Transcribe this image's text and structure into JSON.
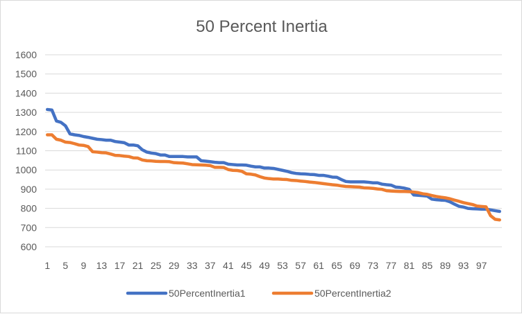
{
  "chart_data": {
    "type": "line",
    "title": "50 Percent Inertia",
    "xlabel": "",
    "ylabel": "",
    "ylim": [
      600,
      1600
    ],
    "y_ticks": [
      600,
      700,
      800,
      900,
      1000,
      1100,
      1200,
      1300,
      1400,
      1500,
      1600
    ],
    "x_ticks": [
      1,
      5,
      9,
      13,
      17,
      21,
      25,
      29,
      33,
      37,
      41,
      45,
      49,
      53,
      57,
      61,
      65,
      69,
      73,
      77,
      81,
      85,
      89,
      93,
      97
    ],
    "grid": true,
    "legend_position": "bottom",
    "series": [
      {
        "name": "50PercentInertia1",
        "color": "#4472c4",
        "values": [
          1315,
          1312,
          1255,
          1248,
          1230,
          1188,
          1183,
          1180,
          1174,
          1170,
          1165,
          1160,
          1158,
          1155,
          1155,
          1148,
          1145,
          1142,
          1130,
          1130,
          1126,
          1105,
          1093,
          1088,
          1085,
          1078,
          1078,
          1070,
          1070,
          1070,
          1070,
          1068,
          1068,
          1068,
          1048,
          1046,
          1043,
          1040,
          1038,
          1038,
          1030,
          1028,
          1026,
          1026,
          1025,
          1020,
          1016,
          1016,
          1010,
          1010,
          1008,
          1003,
          998,
          993,
          986,
          982,
          980,
          979,
          977,
          976,
          972,
          972,
          968,
          963,
          962,
          950,
          940,
          938,
          938,
          938,
          938,
          936,
          933,
          933,
          926,
          923,
          921,
          911,
          909,
          905,
          899,
          870,
          868,
          866,
          864,
          848,
          845,
          843,
          842,
          834,
          822,
          811,
          807,
          800,
          798,
          797,
          796,
          796,
          792,
          788,
          784
        ]
      },
      {
        "name": "50PercentInertia2",
        "color": "#ed7d31",
        "values": [
          1183,
          1183,
          1160,
          1155,
          1145,
          1143,
          1137,
          1130,
          1128,
          1122,
          1095,
          1093,
          1090,
          1089,
          1083,
          1076,
          1075,
          1072,
          1070,
          1063,
          1062,
          1052,
          1048,
          1047,
          1045,
          1044,
          1044,
          1043,
          1038,
          1037,
          1036,
          1032,
          1028,
          1027,
          1026,
          1025,
          1023,
          1014,
          1014,
          1013,
          1002,
          998,
          997,
          993,
          980,
          978,
          974,
          965,
          958,
          955,
          953,
          953,
          951,
          950,
          946,
          945,
          942,
          940,
          937,
          935,
          932,
          929,
          926,
          923,
          921,
          917,
          914,
          913,
          912,
          911,
          907,
          906,
          904,
          901,
          899,
          892,
          890,
          889,
          888,
          888,
          887,
          885,
          882,
          876,
          873,
          867,
          862,
          858,
          855,
          850,
          843,
          837,
          830,
          825,
          820,
          812,
          810,
          808,
          762,
          743,
          740
        ]
      }
    ]
  }
}
